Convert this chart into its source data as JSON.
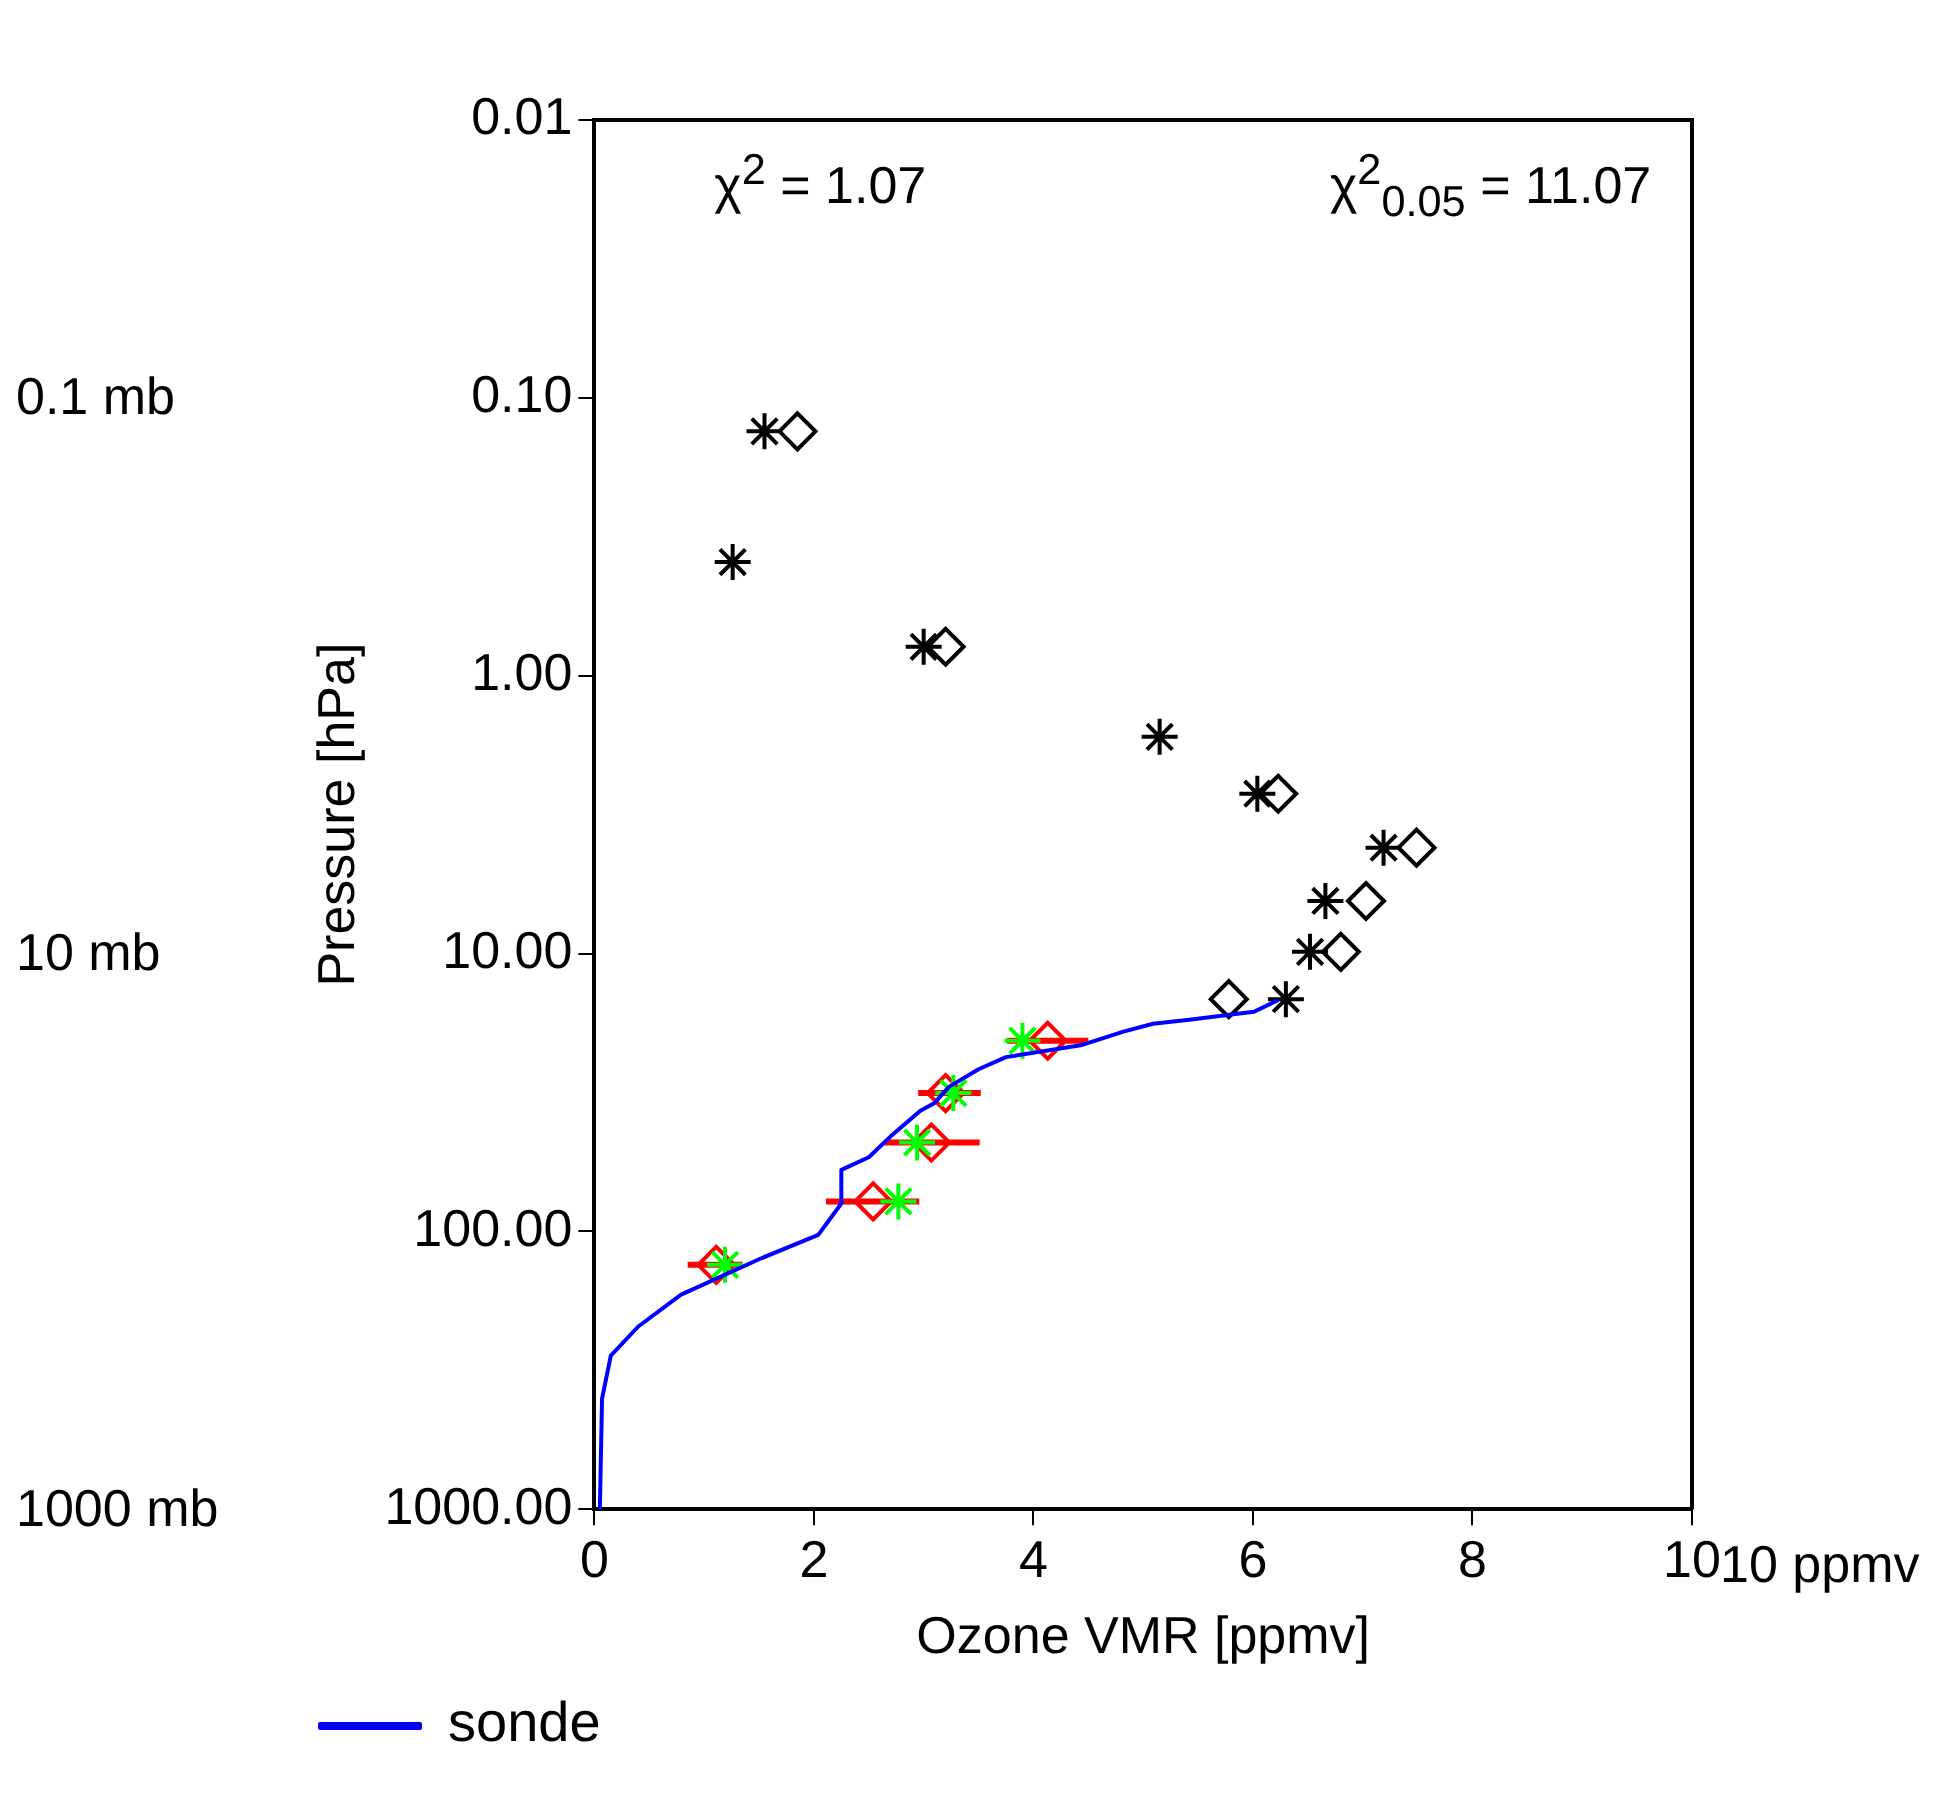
{
  "chart_data": {
    "type": "scatter",
    "xlabel": "Ozone VMR [ppmv]",
    "ylabel": "Pressure [hPa]",
    "xlim": [
      0,
      10
    ],
    "xticks": [
      0,
      2,
      4,
      6,
      8,
      10
    ],
    "ylim": [
      1000,
      0.01
    ],
    "log": "y",
    "yticks": [
      {
        "value": 0.01,
        "label": "0.01"
      },
      {
        "value": 0.1,
        "label": "0.10"
      },
      {
        "value": 1,
        "label": "1.00"
      },
      {
        "value": 10,
        "label": "10.00"
      },
      {
        "value": 100,
        "label": "100.00"
      },
      {
        "value": 1000,
        "label": "1000.00"
      }
    ],
    "grid": false,
    "legend": "bottom left",
    "annotations": [
      "χ$^{2}$ =  1.07",
      "χ$^{2}$$_{0.05}$ = 11.07",
      "10 ppmv",
      "0.1 mb",
      "10 mb",
      "1000 mb"
    ],
    "series": [
      {
        "name": "sonde",
        "type": "line",
        "color": "#0000ff",
        "marker": "none",
        "line_style": "solid",
        "x": [
          0.05,
          0.07,
          0.15,
          0.4,
          0.79,
          1.5,
          2.04,
          2.25,
          2.25,
          2.5,
          2.7,
          2.97,
          3.1,
          3.23,
          3.5,
          3.75,
          4.43,
          4.82,
          5.09,
          5.42,
          6.01,
          6.23
        ],
        "values": [
          1000,
          400,
          280,
          220,
          169,
          126,
          103,
          79.4,
          60.1,
          54.1,
          45.5,
          36.8,
          34.5,
          30.2,
          26.1,
          23.6,
          21.4,
          19.1,
          17.9,
          17.3,
          16.2,
          14.7
        ]
      },
      {
        "type": "scatter",
        "color": "#000000",
        "marker": "cross",
        "x": [
          1.55,
          1.26,
          3.0,
          5.15,
          6.04,
          7.19,
          6.66,
          6.52,
          6.3
        ],
        "values": [
          0.132,
          0.39,
          0.787,
          1.66,
          2.66,
          4.16,
          6.47,
          9.86,
          14.6
        ]
      },
      {
        "type": "scatter",
        "color": "#000000",
        "marker": "diamond",
        "x": [
          1.85,
          3.2,
          6.23,
          7.49,
          7.03,
          6.8,
          5.78
        ],
        "values": [
          0.132,
          0.787,
          2.66,
          4.16,
          6.47,
          9.86,
          14.6
        ]
      },
      {
        "type": "scatter",
        "color": "#00ff00",
        "marker": "cross",
        "x": [
          3.9,
          3.27,
          2.94,
          2.77,
          1.19
        ],
        "values": [
          20.6,
          31.8,
          47.9,
          78,
          132
        ]
      },
      {
        "type": "scatter",
        "color": "#ff0000",
        "marker": "diamond",
        "x": [
          4.13,
          3.2,
          3.07,
          2.54,
          1.11
        ],
        "values": [
          20.6,
          31.8,
          47.9,
          78,
          132
        ],
        "xerrors": [
          [
            3.76,
            4.5
          ],
          [
            2.95,
            3.52
          ],
          [
            2.64,
            3.51
          ],
          [
            2.11,
            2.96
          ],
          [
            0.85,
            1.35
          ]
        ]
      }
    ]
  }
}
